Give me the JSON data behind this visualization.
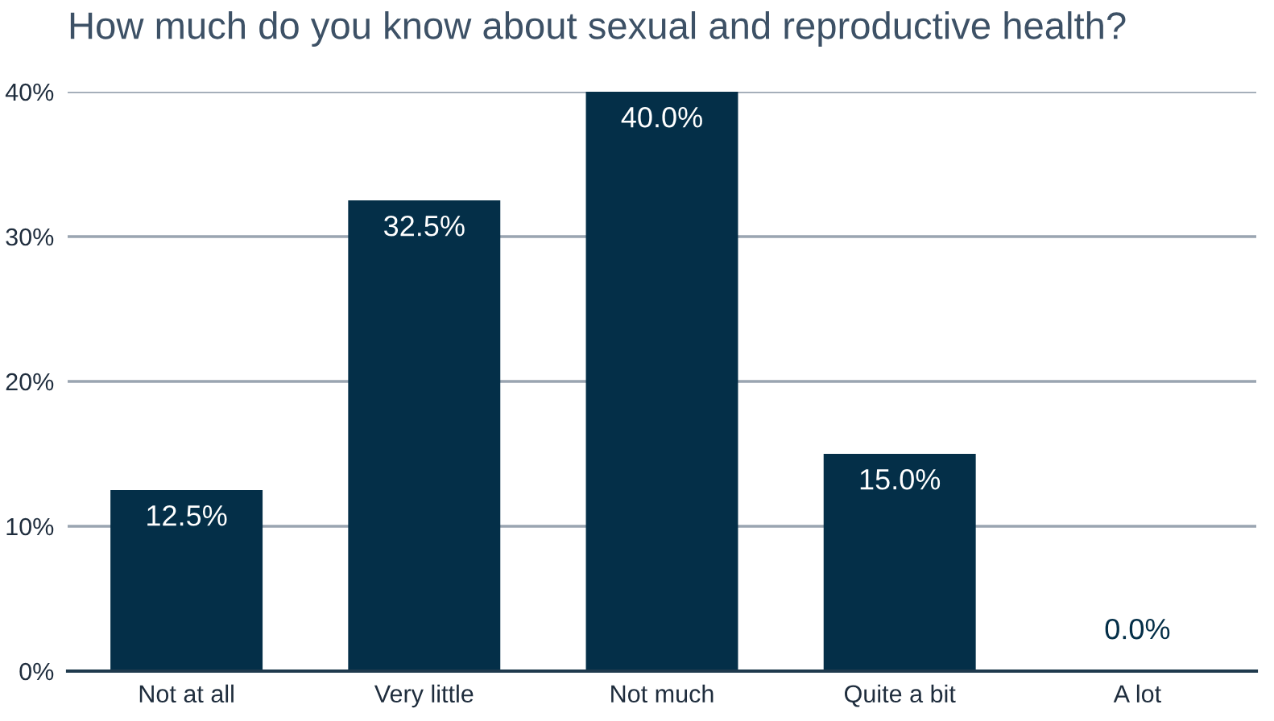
{
  "chart_data": {
    "type": "bar",
    "title": "How much do you know about sexual and reproductive health?",
    "categories": [
      "Not at all",
      "Very little",
      "Not much",
      "Quite a bit",
      "A lot"
    ],
    "values": [
      12.5,
      32.5,
      40.0,
      15.0,
      0.0
    ],
    "value_labels": [
      "12.5%",
      "32.5%",
      "40.0%",
      "15.0%",
      "0.0%"
    ],
    "color": "#042f48",
    "ylim": [
      0,
      40
    ],
    "yticks": [
      {
        "value": 0,
        "label": "0%"
      },
      {
        "value": 10,
        "label": "10%"
      },
      {
        "value": 20,
        "label": "20%"
      },
      {
        "value": 30,
        "label": "30%"
      },
      {
        "value": 40,
        "label": "40%"
      }
    ],
    "grid": "y",
    "legend": false
  }
}
